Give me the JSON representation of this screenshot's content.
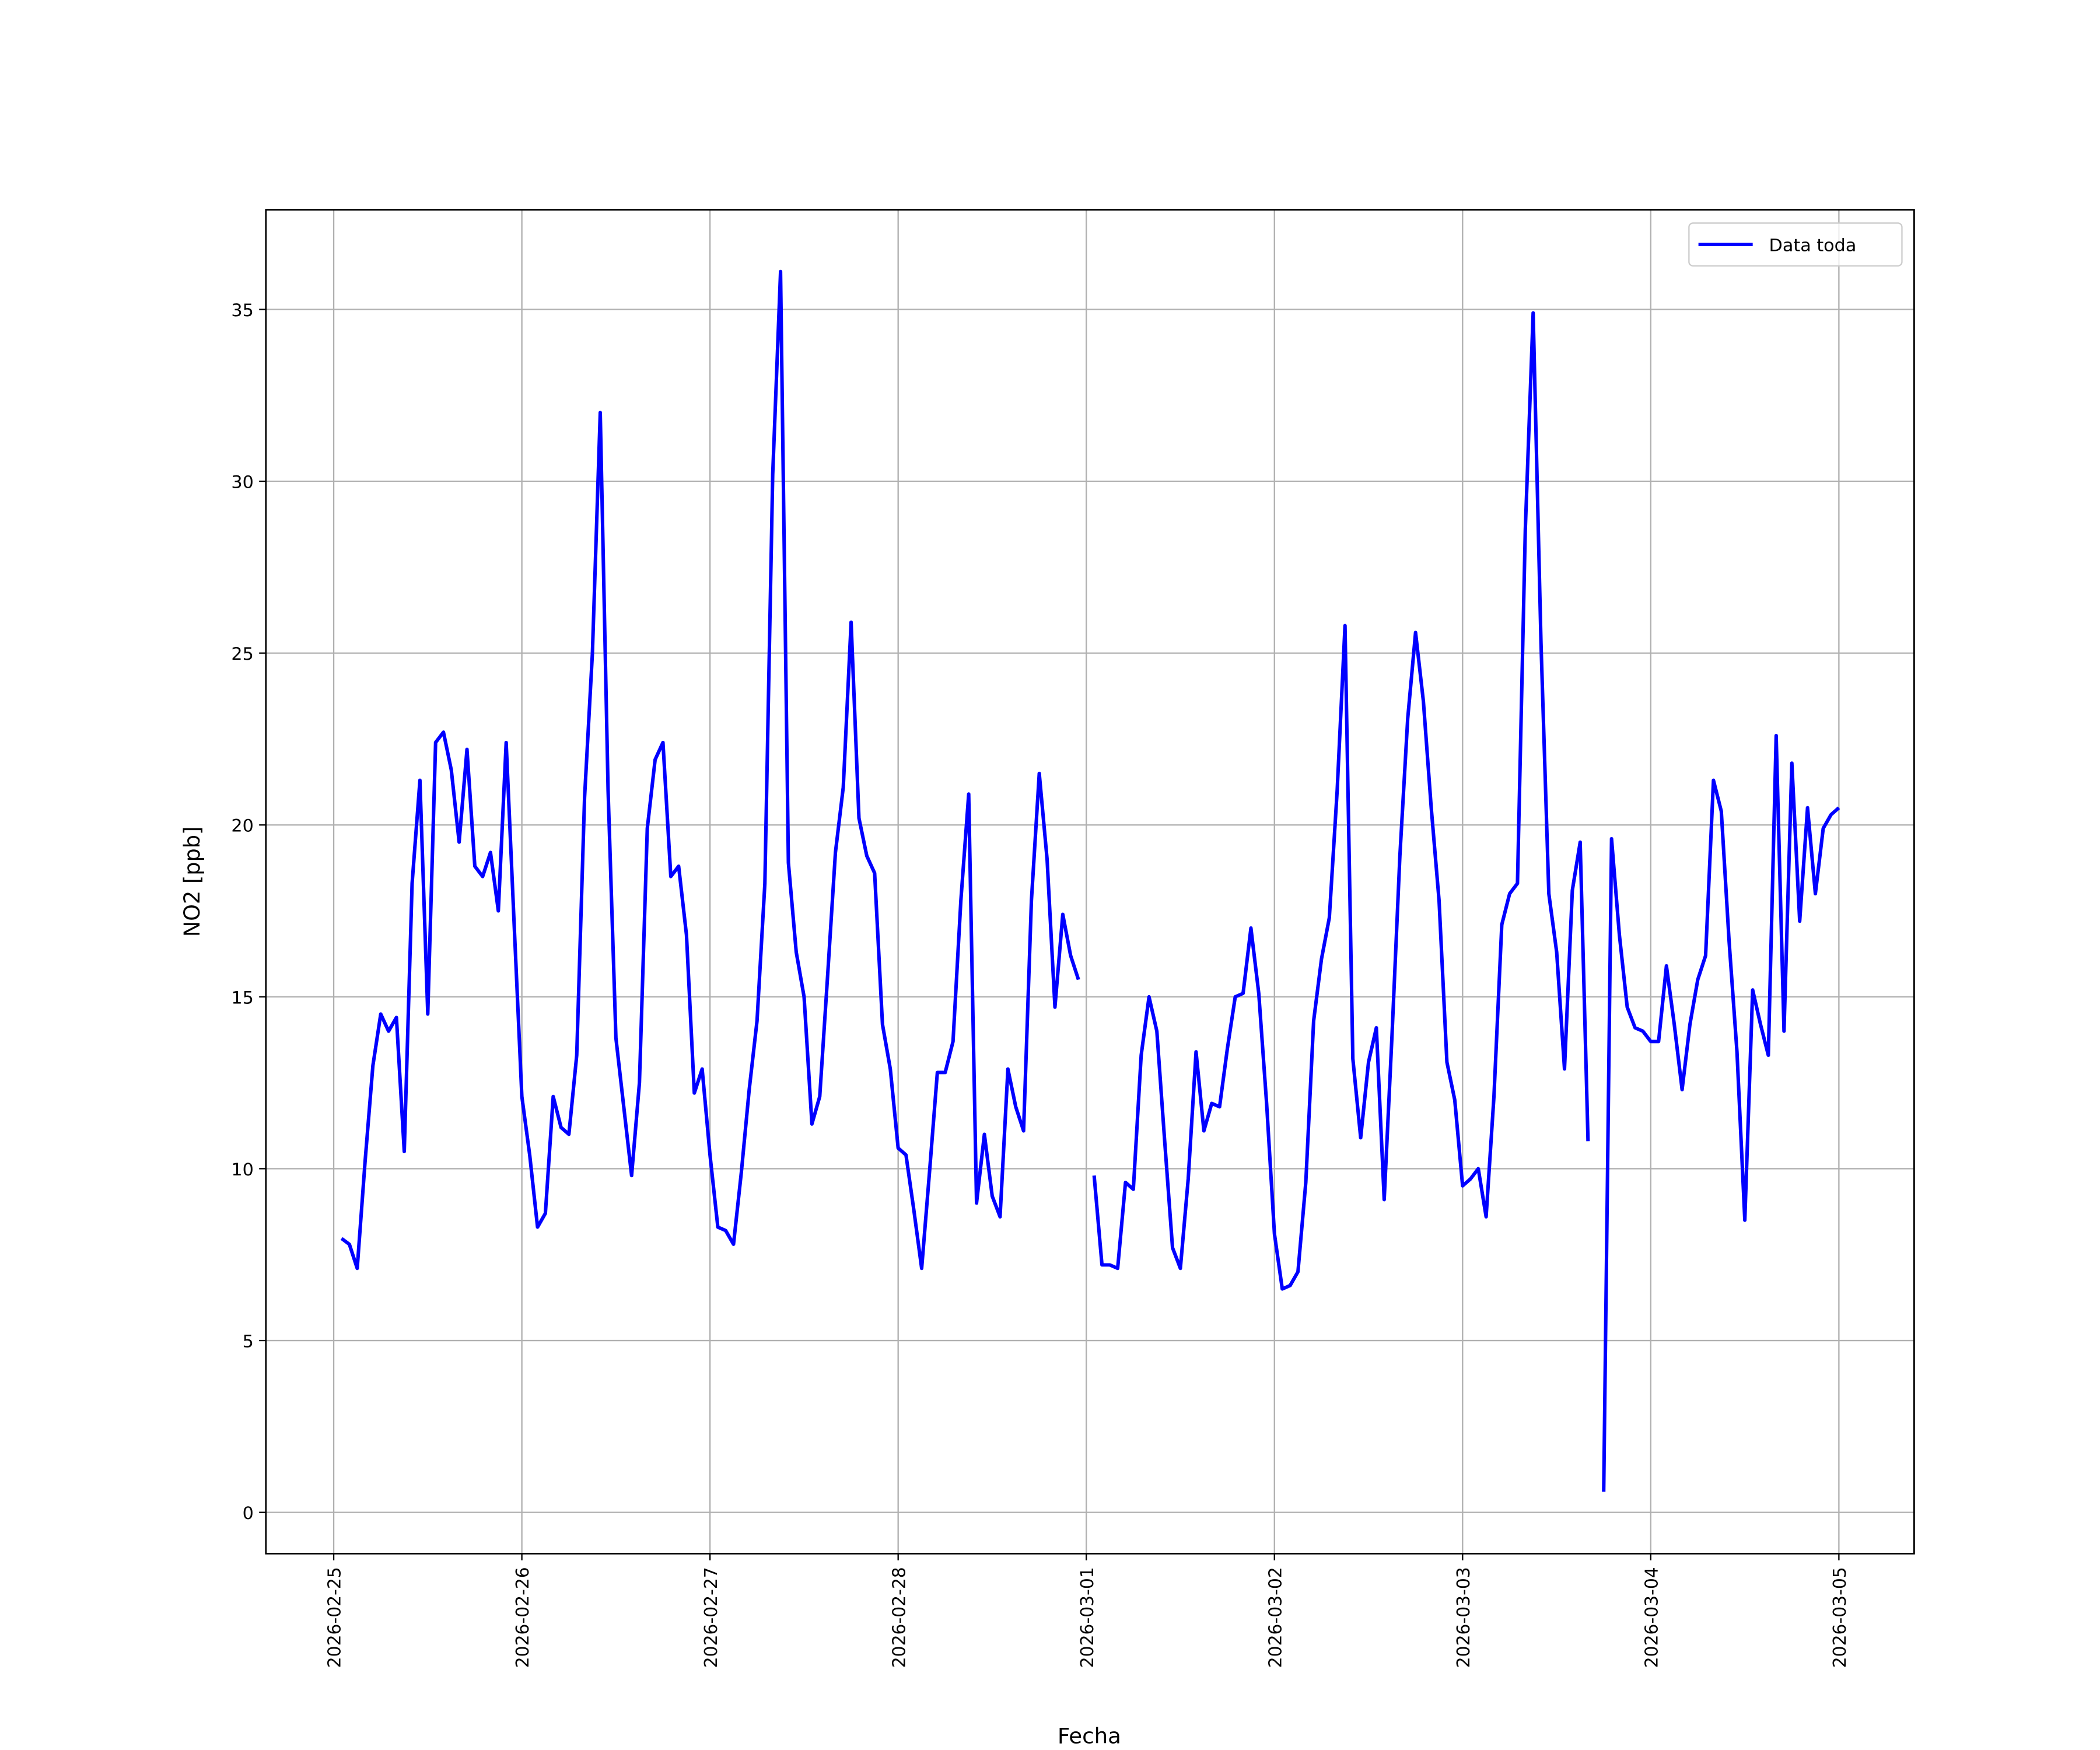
{
  "chart_data": {
    "type": "line",
    "xlabel": "Fecha",
    "ylabel": "NO2 [ppb]",
    "xlim": [
      "2026-02-24T15:21",
      "2026-03-05T09:36"
    ],
    "ylim": [
      -1.2,
      37.9
    ],
    "xticks": [
      "2026-02-25",
      "2026-02-26",
      "2026-02-27",
      "2026-02-28",
      "2026-03-01",
      "2026-03-02",
      "2026-03-03",
      "2026-03-04",
      "2026-03-05"
    ],
    "yticks": [
      0,
      5,
      10,
      15,
      20,
      25,
      30,
      35
    ],
    "grid": true,
    "legend": "upper right",
    "x": [
      "2026-02-25T01:00",
      "2026-02-25T02:00",
      "2026-02-25T03:00",
      "2026-02-25T04:00",
      "2026-02-25T05:00",
      "2026-02-25T06:00",
      "2026-02-25T07:00",
      "2026-02-25T08:00",
      "2026-02-25T09:00",
      "2026-02-25T10:00",
      "2026-02-25T11:00",
      "2026-02-25T12:00",
      "2026-02-25T13:00",
      "2026-02-25T14:00",
      "2026-02-25T15:00",
      "2026-02-25T16:00",
      "2026-02-25T17:00",
      "2026-02-25T18:00",
      "2026-02-25T19:00",
      "2026-02-25T20:00",
      "2026-02-25T21:00",
      "2026-02-25T22:00",
      "2026-02-25T23:00",
      "2026-02-26T00:00",
      "2026-02-26T01:00",
      "2026-02-26T02:00",
      "2026-02-26T03:00",
      "2026-02-26T04:00",
      "2026-02-26T05:00",
      "2026-02-26T06:00",
      "2026-02-26T07:00",
      "2026-02-26T08:00",
      "2026-02-26T09:00",
      "2026-02-26T10:00",
      "2026-02-26T11:00",
      "2026-02-26T12:00",
      "2026-02-26T13:00",
      "2026-02-26T14:00",
      "2026-02-26T15:00",
      "2026-02-26T16:00",
      "2026-02-26T17:00",
      "2026-02-26T18:00",
      "2026-02-26T19:00",
      "2026-02-26T20:00",
      "2026-02-26T21:00",
      "2026-02-26T22:00",
      "2026-02-26T23:00",
      "2026-02-27T00:00",
      "2026-02-27T01:00",
      "2026-02-27T02:00",
      "2026-02-27T03:00",
      "2026-02-27T04:00",
      "2026-02-27T05:00",
      "2026-02-27T06:00",
      "2026-02-27T07:00",
      "2026-02-27T08:00",
      "2026-02-27T09:00",
      "2026-02-27T10:00",
      "2026-02-27T11:00",
      "2026-02-27T12:00",
      "2026-02-27T13:00",
      "2026-02-27T14:00",
      "2026-02-27T15:00",
      "2026-02-27T16:00",
      "2026-02-27T17:00",
      "2026-02-27T18:00",
      "2026-02-27T19:00",
      "2026-02-27T20:00",
      "2026-02-27T21:00",
      "2026-02-27T22:00",
      "2026-02-27T23:00",
      "2026-02-28T00:00",
      "2026-02-28T01:00",
      "2026-02-28T02:00",
      "2026-02-28T03:00",
      "2026-02-28T04:00",
      "2026-02-28T05:00",
      "2026-02-28T06:00",
      "2026-02-28T07:00",
      "2026-02-28T08:00",
      "2026-02-28T09:00",
      "2026-02-28T10:00",
      "2026-02-28T11:00",
      "2026-02-28T12:00",
      "2026-02-28T13:00",
      "2026-02-28T14:00",
      "2026-02-28T15:00",
      "2026-02-28T16:00",
      "2026-02-28T17:00",
      "2026-02-28T18:00",
      "2026-02-28T19:00",
      "2026-02-28T20:00",
      "2026-02-28T21:00",
      "2026-02-28T22:00",
      "2026-02-28T23:00",
      "2026-03-01T00:00",
      "2026-03-01T01:00",
      "2026-03-01T02:00",
      "2026-03-01T03:00",
      "2026-03-01T04:00",
      "2026-03-01T05:00",
      "2026-03-01T06:00",
      "2026-03-01T07:00",
      "2026-03-01T08:00",
      "2026-03-01T09:00",
      "2026-03-01T10:00",
      "2026-03-01T11:00",
      "2026-03-01T12:00",
      "2026-03-01T13:00",
      "2026-03-01T14:00",
      "2026-03-01T15:00",
      "2026-03-01T16:00",
      "2026-03-01T17:00",
      "2026-03-01T18:00",
      "2026-03-01T19:00",
      "2026-03-01T20:00",
      "2026-03-01T21:00",
      "2026-03-01T22:00",
      "2026-03-01T23:00",
      "2026-03-02T00:00",
      "2026-03-02T01:00",
      "2026-03-02T02:00",
      "2026-03-02T03:00",
      "2026-03-02T04:00",
      "2026-03-02T05:00",
      "2026-03-02T06:00",
      "2026-03-02T07:00",
      "2026-03-02T08:00",
      "2026-03-02T09:00",
      "2026-03-02T10:00",
      "2026-03-02T11:00",
      "2026-03-02T12:00",
      "2026-03-02T13:00",
      "2026-03-02T14:00",
      "2026-03-02T15:00",
      "2026-03-02T16:00",
      "2026-03-02T17:00",
      "2026-03-02T18:00",
      "2026-03-02T19:00",
      "2026-03-02T20:00",
      "2026-03-02T21:00",
      "2026-03-02T22:00",
      "2026-03-02T23:00",
      "2026-03-03T00:00",
      "2026-03-03T01:00",
      "2026-03-03T02:00",
      "2026-03-03T03:00",
      "2026-03-03T04:00",
      "2026-03-03T05:00",
      "2026-03-03T06:00",
      "2026-03-03T07:00",
      "2026-03-03T08:00",
      "2026-03-03T09:00",
      "2026-03-03T10:00",
      "2026-03-03T11:00",
      "2026-03-03T12:00",
      "2026-03-03T13:00",
      "2026-03-03T14:00",
      "2026-03-03T15:00",
      "2026-03-03T16:00",
      "2026-03-03T17:00",
      "2026-03-03T18:00",
      "2026-03-03T19:00",
      "2026-03-03T20:00",
      "2026-03-03T21:00",
      "2026-03-03T22:00",
      "2026-03-03T23:00",
      "2026-03-04T00:00",
      "2026-03-04T01:00",
      "2026-03-04T02:00",
      "2026-03-04T03:00",
      "2026-03-04T04:00",
      "2026-03-04T05:00",
      "2026-03-04T06:00",
      "2026-03-04T07:00",
      "2026-03-04T08:00",
      "2026-03-04T09:00",
      "2026-03-04T10:00",
      "2026-03-04T11:00",
      "2026-03-04T12:00",
      "2026-03-04T13:00",
      "2026-03-04T14:00",
      "2026-03-04T15:00",
      "2026-03-04T16:00",
      "2026-03-04T17:00",
      "2026-03-04T18:00",
      "2026-03-04T19:00",
      "2026-03-04T20:00",
      "2026-03-04T21:00",
      "2026-03-04T22:00",
      "2026-03-04T23:00",
      "2026-03-05T00:00"
    ],
    "series": [
      {
        "name": "Data toda",
        "color": "#0000ff",
        "values": [
          7.97,
          7.8,
          7.1,
          10.2,
          13.0,
          14.5,
          14.0,
          14.4,
          10.5,
          18.3,
          21.3,
          14.5,
          22.4,
          22.7,
          21.6,
          19.5,
          22.2,
          18.8,
          18.5,
          19.2,
          17.5,
          22.4,
          17.2,
          12.1,
          10.4,
          8.3,
          8.7,
          12.1,
          11.2,
          11.0,
          13.3,
          20.8,
          25.0,
          32.0,
          21.0,
          13.8,
          11.8,
          9.8,
          12.5,
          19.9,
          21.9,
          22.4,
          18.5,
          18.8,
          16.8,
          12.2,
          12.9,
          10.4,
          8.3,
          8.2,
          7.8,
          9.9,
          12.3,
          14.3,
          18.3,
          30.2,
          36.1,
          18.9,
          16.3,
          15.0,
          11.3,
          12.1,
          15.6,
          19.2,
          21.1,
          25.9,
          20.2,
          19.1,
          18.6,
          14.2,
          12.9,
          10.6,
          10.4,
          8.8,
          7.1,
          9.9,
          12.8,
          12.8,
          13.7,
          17.8,
          20.9,
          9.0,
          11.0,
          9.2,
          8.6,
          12.9,
          11.8,
          11.1,
          17.8,
          21.5,
          19.0,
          14.7,
          17.4,
          16.2,
          15.5,
          null,
          9.8,
          7.2,
          7.2,
          7.1,
          9.6,
          9.4,
          13.3,
          15.0,
          14.0,
          10.8,
          7.7,
          7.1,
          9.7,
          13.4,
          11.1,
          11.9,
          11.8,
          13.5,
          15.0,
          15.1,
          17.0,
          15.1,
          11.9,
          8.1,
          6.5,
          6.6,
          7.0,
          9.6,
          14.3,
          16.1,
          17.3,
          21.0,
          25.8,
          13.2,
          10.9,
          13.1,
          14.1,
          9.1,
          13.9,
          19.1,
          23.1,
          25.6,
          23.6,
          20.5,
          17.8,
          13.1,
          12.0,
          9.5,
          9.7,
          10.0,
          8.6,
          12.1,
          17.1,
          18.0,
          18.3,
          28.6,
          34.9,
          25.3,
          18.0,
          16.3,
          12.9,
          18.1,
          19.5,
          10.8,
          null,
          0.6,
          19.6,
          16.8,
          14.7,
          14.1,
          14.0,
          13.7,
          13.7,
          15.9,
          14.2,
          12.3,
          14.2,
          15.5,
          16.2,
          21.3,
          20.4,
          16.6,
          13.4,
          8.5,
          15.2,
          14.2,
          13.3,
          22.6,
          14.0,
          21.8,
          17.2,
          20.5,
          18.0,
          19.9,
          20.3,
          20.5
        ]
      }
    ]
  }
}
